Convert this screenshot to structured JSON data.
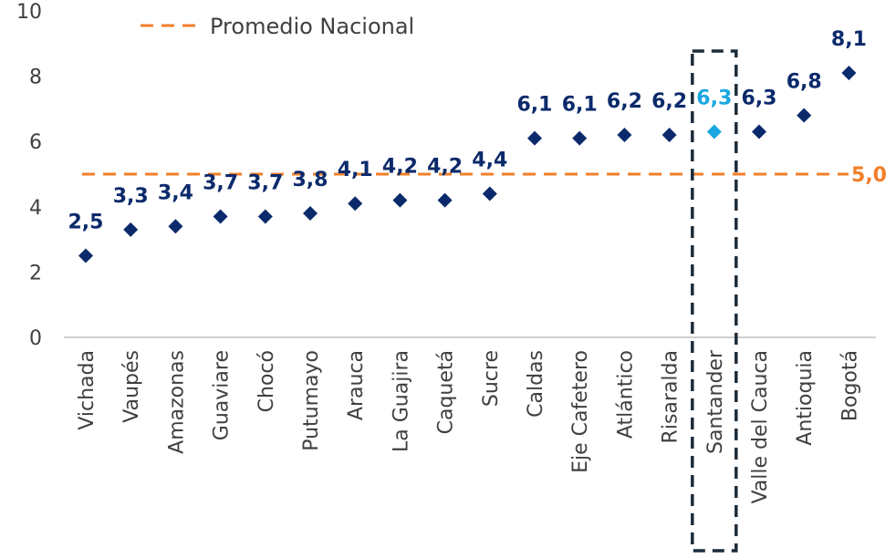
{
  "chart_data": {
    "type": "scatter",
    "title": "",
    "xlabel": "",
    "ylabel": "",
    "ylim": [
      0,
      10
    ],
    "y_ticks": [
      "0",
      "2",
      "4",
      "6",
      "8",
      "10"
    ],
    "grid": false,
    "legend": "top-left",
    "categories": [
      "Vichada",
      "Vaupés",
      "Amazonas",
      "Guaviare",
      "Chocó",
      "Putumayo",
      "Arauca",
      "La Guajira",
      "Caquetá",
      "Sucre",
      "Caldas",
      "Eje Cafetero",
      "Atlántico",
      "Risaralda",
      "Santander",
      "Valle del Cauca",
      "Antioquia",
      "Bogotá"
    ],
    "values": [
      2.5,
      3.3,
      3.4,
      3.7,
      3.7,
      3.8,
      4.1,
      4.2,
      4.2,
      4.4,
      6.1,
      6.1,
      6.2,
      6.2,
      6.3,
      6.3,
      6.8,
      8.1
    ],
    "value_labels": [
      "2,5",
      "3,3",
      "3,4",
      "3,7",
      "3,7",
      "3,8",
      "4,1",
      "4,2",
      "4,2",
      "4,4",
      "6,1",
      "6,1",
      "6,2",
      "6,2",
      "6,3",
      "6,3",
      "6,8",
      "8,1"
    ],
    "highlight_category": "Santander",
    "reference_line": {
      "name": "Promedio Nacional",
      "value": 5.0,
      "label": "5,0"
    },
    "colors": {
      "point": "#0b2a6b",
      "highlight": "#1aa7e0",
      "average": "#f07f29",
      "highlight_box": "#1d2c3a",
      "axis": "#bfbfbf"
    }
  }
}
